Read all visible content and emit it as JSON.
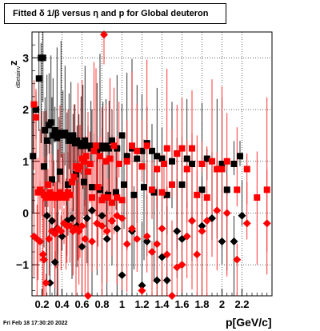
{
  "title": "Fitted δ 1/β versus η and p for Global deuteron",
  "ylabel_main": "z",
  "ylabel_sub": "dBetainv",
  "xlabel": "p[GeV/c]",
  "datestamp": "Fri Feb 18 17:30:20 2022",
  "chart_data": {
    "type": "scatter",
    "title": "Fitted δ 1/β versus η and p for Global deuteron",
    "xlabel": "p[GeV/c]",
    "ylabel": "z dBetainv",
    "xlim": [
      0.1,
      2.5
    ],
    "ylim": [
      -1.6,
      3.5
    ],
    "xticks": [
      "0.2",
      "0.4",
      "0.6",
      "0.8",
      "1",
      "1.2",
      "1.4",
      "1.6",
      "1.8",
      "2",
      "2.2"
    ],
    "yticks": [
      "−1",
      "0",
      "1",
      "2",
      "3"
    ],
    "grid": true,
    "series": [
      {
        "color": "#000000",
        "marker_square": [
          [
            0.11,
            1.1
          ],
          [
            0.14,
            2.0
          ],
          [
            0.17,
            2.6
          ],
          [
            0.19,
            3.0
          ],
          [
            0.21,
            3.0
          ],
          [
            0.23,
            1.6
          ],
          [
            0.25,
            1.4
          ],
          [
            0.27,
            1.7
          ],
          [
            0.29,
            1.75
          ],
          [
            0.31,
            1.5
          ],
          [
            0.33,
            1.6
          ],
          [
            0.35,
            1.45
          ],
          [
            0.37,
            1.5
          ],
          [
            0.39,
            1.55
          ],
          [
            0.41,
            1.5
          ],
          [
            0.43,
            1.55
          ],
          [
            0.45,
            1.5
          ],
          [
            0.47,
            1.4
          ],
          [
            0.49,
            1.45
          ],
          [
            0.51,
            1.5
          ],
          [
            0.53,
            1.35
          ],
          [
            0.55,
            1.4
          ],
          [
            0.57,
            1.35
          ],
          [
            0.59,
            1.3
          ],
          [
            0.61,
            1.3
          ],
          [
            0.63,
            1.4
          ],
          [
            0.66,
            1.3
          ],
          [
            0.69,
            1.25
          ],
          [
            0.72,
            1.3
          ],
          [
            0.75,
            1.2
          ],
          [
            0.78,
            1.3
          ],
          [
            0.81,
            1.25
          ],
          [
            0.84,
            1.3
          ],
          [
            0.87,
            1.25
          ],
          [
            0.9,
            1.4
          ],
          [
            0.95,
            1.25
          ],
          [
            1.0,
            1.5
          ],
          [
            1.05,
            1.1
          ],
          [
            1.1,
            1.25
          ],
          [
            1.15,
            1.05
          ],
          [
            1.2,
            1.2
          ],
          [
            1.25,
            1.35
          ],
          [
            1.3,
            1.2
          ],
          [
            1.35,
            1.1
          ],
          [
            1.4,
            1.05
          ],
          [
            1.45,
            0.35
          ],
          [
            1.5,
            1.0
          ],
          [
            1.55,
            1.15
          ],
          [
            1.6,
            0.55
          ],
          [
            1.65,
            1.05
          ],
          [
            1.7,
            0.95
          ],
          [
            1.8,
            0.45
          ],
          [
            1.85,
            1.05
          ],
          [
            1.95,
            0.85
          ],
          [
            2.0,
            0.95
          ],
          [
            2.05,
            0.45
          ],
          [
            2.12,
            0.95
          ],
          [
            2.18,
            1.1
          ],
          [
            0.22,
            0.9
          ],
          [
            0.3,
            0.65
          ],
          [
            0.38,
            0.8
          ],
          [
            0.46,
            0.55
          ],
          [
            0.54,
            0.75
          ],
          [
            0.62,
            0.6
          ],
          [
            0.7,
            0.5
          ],
          [
            0.78,
            0.45
          ],
          [
            0.86,
            0.35
          ],
          [
            0.94,
            0.4
          ],
          [
            1.02,
            0.55
          ],
          [
            1.12,
            0.35
          ],
          [
            1.22,
            0.5
          ],
          [
            1.32,
            0.4
          ]
        ],
        "marker_diamond": [
          [
            0.25,
            -0.05
          ],
          [
            0.3,
            -0.15
          ],
          [
            0.35,
            -0.3
          ],
          [
            0.4,
            -0.45
          ],
          [
            0.45,
            -0.15
          ],
          [
            0.5,
            -0.1
          ],
          [
            0.55,
            -0.25
          ],
          [
            0.6,
            -0.65
          ],
          [
            0.65,
            -0.1
          ],
          [
            0.7,
            0.05
          ],
          [
            0.75,
            -0.2
          ],
          [
            0.8,
            -0.05
          ],
          [
            0.85,
            -0.5
          ],
          [
            0.9,
            -0.15
          ],
          [
            0.95,
            -0.3
          ],
          [
            1.0,
            -1.2
          ],
          [
            1.1,
            -0.35
          ],
          [
            1.2,
            -1.4
          ],
          [
            1.25,
            -0.55
          ],
          [
            1.35,
            -1.3
          ],
          [
            1.4,
            -0.85
          ],
          [
            1.45,
            -1.3
          ],
          [
            1.55,
            -0.35
          ],
          [
            1.6,
            -0.5
          ],
          [
            1.7,
            -0.15
          ],
          [
            1.8,
            -0.25
          ],
          [
            1.9,
            -0.1
          ],
          [
            2.0,
            -0.55
          ],
          [
            2.12,
            -0.55
          ],
          [
            2.2,
            -0.05
          ],
          [
            0.28,
            -1.35
          ],
          [
            0.33,
            -0.95
          ]
        ]
      },
      {
        "color": "#ff0000",
        "marker_square": [
          [
            0.12,
            2.1
          ],
          [
            0.14,
            1.85
          ],
          [
            0.16,
            0.4
          ],
          [
            0.18,
            0.45
          ],
          [
            0.2,
            0.4
          ],
          [
            0.22,
            0.35
          ],
          [
            0.24,
            0.3
          ],
          [
            0.26,
            0.55
          ],
          [
            0.28,
            0.4
          ],
          [
            0.3,
            0.3
          ],
          [
            0.32,
            0.3
          ],
          [
            0.34,
            0.35
          ],
          [
            0.36,
            0.3
          ],
          [
            0.38,
            0.4
          ],
          [
            0.4,
            0.3
          ],
          [
            0.42,
            0.35
          ],
          [
            0.44,
            0.3
          ],
          [
            0.46,
            0.4
          ],
          [
            0.48,
            0.35
          ],
          [
            0.5,
            0.6
          ],
          [
            0.52,
            0.7
          ],
          [
            0.54,
            0.9
          ],
          [
            0.56,
            0.85
          ],
          [
            0.58,
            0.9
          ],
          [
            0.6,
            1.05
          ],
          [
            0.62,
            1.0
          ],
          [
            0.64,
            1.1
          ],
          [
            0.66,
            0.8
          ],
          [
            0.68,
            0.95
          ],
          [
            0.7,
            0.3
          ],
          [
            0.72,
            1.2
          ],
          [
            0.74,
            1.3
          ],
          [
            0.76,
            0.5
          ],
          [
            0.78,
            1.1
          ],
          [
            0.8,
            0.25
          ],
          [
            0.82,
            0.3
          ],
          [
            0.84,
            1.0
          ],
          [
            0.86,
            0.3
          ],
          [
            0.88,
            1.05
          ],
          [
            0.9,
            0.2
          ],
          [
            0.95,
            0.3
          ],
          [
            1.0,
            0.25
          ],
          [
            1.05,
            1.0
          ],
          [
            1.1,
            1.3
          ],
          [
            1.15,
            1.2
          ],
          [
            1.2,
            0.9
          ],
          [
            1.25,
            1.3
          ],
          [
            1.3,
            0.45
          ],
          [
            1.35,
            0.85
          ],
          [
            1.4,
            0.4
          ],
          [
            1.45,
            1.25
          ],
          [
            1.5,
            0.55
          ],
          [
            1.55,
            1.15
          ],
          [
            1.6,
            1.25
          ],
          [
            1.65,
            0.85
          ],
          [
            1.7,
            1.25
          ],
          [
            1.75,
            0.35
          ],
          [
            1.85,
            0.3
          ],
          [
            1.95,
            0.85
          ],
          [
            2.05,
            1.0
          ],
          [
            2.15,
            0.45
          ],
          [
            2.25,
            0.85
          ],
          [
            2.35,
            0.3
          ],
          [
            2.45,
            0.45
          ],
          [
            1.8,
            0.95
          ],
          [
            1.9,
            1.0
          ],
          [
            2.0,
            0.85
          ],
          [
            0.92,
            1.3
          ],
          [
            1.42,
            0.95
          ],
          [
            0.97,
            0.95
          ]
        ],
        "marker_diamond": [
          [
            0.12,
            -0.45
          ],
          [
            0.15,
            -0.5
          ],
          [
            0.18,
            -0.55
          ],
          [
            0.21,
            -0.8
          ],
          [
            0.24,
            -1.35
          ],
          [
            0.27,
            -0.5
          ],
          [
            0.3,
            -0.35
          ],
          [
            0.33,
            -0.4
          ],
          [
            0.36,
            -0.3
          ],
          [
            0.39,
            -0.35
          ],
          [
            0.42,
            -0.2
          ],
          [
            0.45,
            -0.25
          ],
          [
            0.48,
            -0.25
          ],
          [
            0.51,
            -0.35
          ],
          [
            0.54,
            -0.3
          ],
          [
            0.57,
            -0.35
          ],
          [
            0.6,
            -0.25
          ],
          [
            0.63,
            -0.5
          ],
          [
            0.66,
            -1.6
          ],
          [
            0.7,
            -0.55
          ],
          [
            0.75,
            -0.2
          ],
          [
            0.8,
            -0.25
          ],
          [
            0.85,
            -0.35
          ],
          [
            0.9,
            -0.15
          ],
          [
            0.95,
            -0.05
          ],
          [
            1.0,
            -0.1
          ],
          [
            1.05,
            -0.6
          ],
          [
            1.1,
            -0.3
          ],
          [
            1.15,
            -0.5
          ],
          [
            1.2,
            -1.5
          ],
          [
            1.25,
            -0.45
          ],
          [
            1.3,
            -0.75
          ],
          [
            1.35,
            -0.6
          ],
          [
            1.4,
            -0.3
          ],
          [
            1.45,
            -0.8
          ],
          [
            1.5,
            -1.6
          ],
          [
            1.55,
            -1.05
          ],
          [
            1.6,
            -1.0
          ],
          [
            1.65,
            -0.45
          ],
          [
            1.7,
            -0.15
          ],
          [
            1.75,
            -0.8
          ],
          [
            1.8,
            -0.35
          ],
          [
            1.85,
            -0.15
          ],
          [
            1.95,
            0.05
          ],
          [
            2.05,
            0.0
          ],
          [
            2.15,
            -0.9
          ],
          [
            2.25,
            -0.2
          ],
          [
            2.45,
            -0.2
          ],
          [
            0.22,
            -0.9
          ],
          [
            0.82,
            3.45
          ]
        ]
      }
    ]
  }
}
